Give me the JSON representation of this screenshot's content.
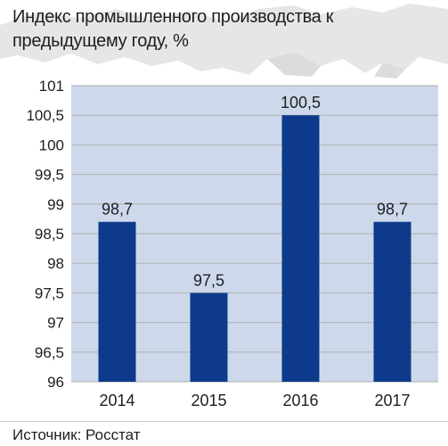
{
  "title": "Индекс промышленного производства к предыдущему году, %",
  "source": "Источник: Росстат",
  "colors": {
    "bar": "#0d3a8a",
    "grid": "#b0b0b0",
    "plot_background": "#cdd9eb",
    "map": "#e3e3e3"
  },
  "chart_data": {
    "type": "bar",
    "categories": [
      "2014",
      "2015",
      "2016",
      "2017"
    ],
    "values": [
      98.7,
      97.5,
      100.5,
      98.7
    ],
    "data_labels": [
      "98,7",
      "97,5",
      "100,5",
      "98,7"
    ],
    "yticks": [
      96,
      96.5,
      97,
      97.5,
      98,
      98.5,
      99,
      99.5,
      100,
      100.5,
      101
    ],
    "ytick_labels": [
      "96",
      "96,5",
      "97",
      "97,5",
      "98",
      "98,5",
      "99",
      "99,5",
      "100",
      "100,5",
      "101"
    ],
    "ylim": [
      96,
      101
    ],
    "grid": true,
    "title": "Индекс промышленного производства к предыдущему году, %",
    "xlabel": "",
    "ylabel": ""
  }
}
